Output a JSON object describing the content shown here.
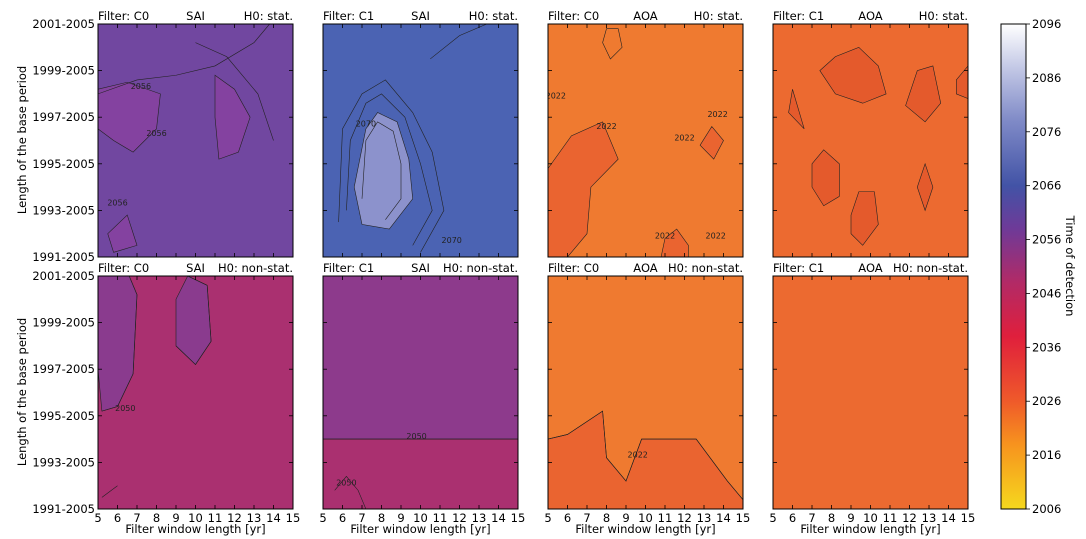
{
  "figure": {
    "shared_xlabel": "Filter window length [yr]",
    "shared_ylabel": "Length of the base period",
    "x_ticks": [
      "5",
      "6",
      "7",
      "8",
      "9",
      "10",
      "11",
      "12",
      "13",
      "14",
      "15"
    ],
    "y_ticks": [
      "1991-2005",
      "1993-2005",
      "1995-2005",
      "1997-2005",
      "1999-2005",
      "2001-2005"
    ],
    "contour_label_value": "2022"
  },
  "colorbar": {
    "label": "Time of detection",
    "ticks": [
      "2006",
      "2016",
      "2026",
      "2036",
      "2046",
      "2056",
      "2066",
      "2076",
      "2086",
      "2096"
    ],
    "range": [
      2006,
      2096
    ],
    "colormap_stops": [
      {
        "value": 2006,
        "color": "#f5d81e"
      },
      {
        "value": 2018,
        "color": "#f7931e"
      },
      {
        "value": 2026,
        "color": "#ef5a2a"
      },
      {
        "value": 2038,
        "color": "#e01f3c"
      },
      {
        "value": 2048,
        "color": "#b22a66"
      },
      {
        "value": 2058,
        "color": "#6e3a98"
      },
      {
        "value": 2066,
        "color": "#4253a6"
      },
      {
        "value": 2078,
        "color": "#7f8ac7"
      },
      {
        "value": 2088,
        "color": "#c4c9e6"
      },
      {
        "value": 2096,
        "color": "#ffffff"
      }
    ]
  },
  "chart_data": [
    {
      "type": "heatmap",
      "row": 0,
      "col": 0,
      "filter": "Filter: C0",
      "index": "SAI",
      "hypothesis": "H0: stat.",
      "color": "#7147a0",
      "patch_color": "#8442a0",
      "contour_label": "2056"
    },
    {
      "type": "heatmap",
      "row": 0,
      "col": 1,
      "filter": "Filter: C1",
      "index": "SAI",
      "hypothesis": "H0: stat.",
      "color": "#4b63b3",
      "patch_color": "#8c92cc",
      "contour_label": "2070"
    },
    {
      "type": "heatmap",
      "row": 0,
      "col": 2,
      "filter": "Filter: C0",
      "index": "AOA",
      "hypothesis": "H0: stat.",
      "color": "#ef7a30",
      "patch_color": "#ea6430",
      "contour_label": "2022"
    },
    {
      "type": "heatmap",
      "row": 0,
      "col": 3,
      "filter": "Filter: C1",
      "index": "AOA",
      "hypothesis": "H0: stat.",
      "color": "#ec6a30",
      "patch_color": "#e45a2c",
      "contour_label": ""
    },
    {
      "type": "heatmap",
      "row": 1,
      "col": 0,
      "filter": "Filter: C0",
      "index": "SAI",
      "hypothesis": "H0: non-stat.",
      "color": "#aa3070",
      "patch_color": "#8a3b8e",
      "contour_label": "2050"
    },
    {
      "type": "heatmap",
      "row": 1,
      "col": 1,
      "filter": "Filter: C1",
      "index": "SAI",
      "hypothesis": "H0: non-stat.",
      "color": "#8d3a8c",
      "patch_color": "#aa3070",
      "contour_label": "2050"
    },
    {
      "type": "heatmap",
      "row": 1,
      "col": 2,
      "filter": "Filter: C0",
      "index": "AOA",
      "hypothesis": "H0: non-stat.",
      "color": "#ef7a30",
      "patch_color": "#ea6430",
      "contour_label": "2022"
    },
    {
      "type": "heatmap",
      "row": 1,
      "col": 3,
      "filter": "Filter: C1",
      "index": "AOA",
      "hypothesis": "H0: non-stat.",
      "color": "#ec6a30",
      "patch_color": "#ec6a30",
      "contour_label": ""
    }
  ]
}
